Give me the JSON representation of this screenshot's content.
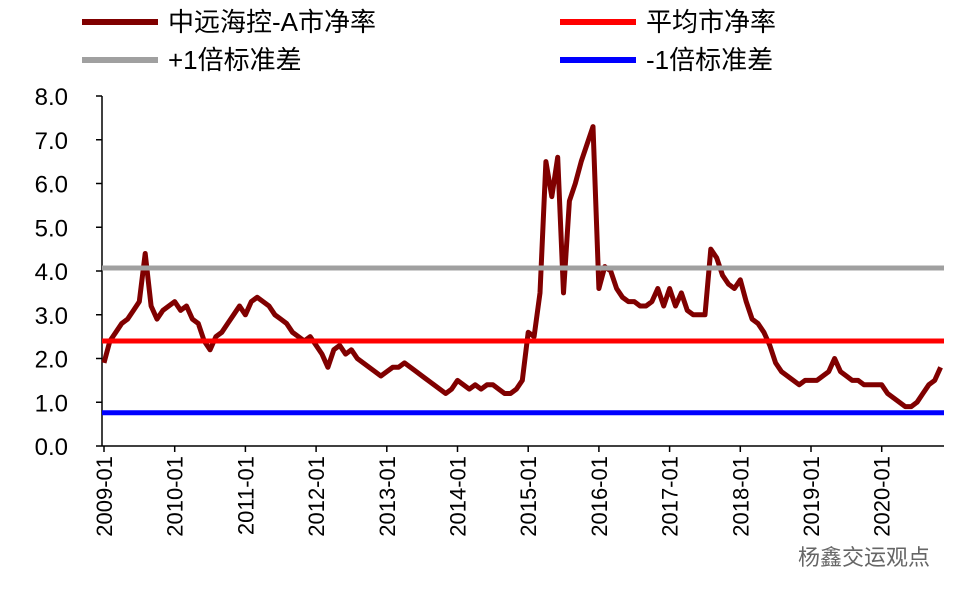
{
  "chart_data": {
    "type": "line",
    "x": [
      "2009-01",
      "2009-02",
      "2009-03",
      "2009-04",
      "2009-05",
      "2009-06",
      "2009-07",
      "2009-08",
      "2009-09",
      "2009-10",
      "2009-11",
      "2009-12",
      "2010-01",
      "2010-02",
      "2010-03",
      "2010-04",
      "2010-05",
      "2010-06",
      "2010-07",
      "2010-08",
      "2010-09",
      "2010-10",
      "2010-11",
      "2010-12",
      "2011-01",
      "2011-02",
      "2011-03",
      "2011-04",
      "2011-05",
      "2011-06",
      "2011-07",
      "2011-08",
      "2011-09",
      "2011-10",
      "2011-11",
      "2011-12",
      "2012-01",
      "2012-02",
      "2012-03",
      "2012-04",
      "2012-05",
      "2012-06",
      "2012-07",
      "2012-08",
      "2012-09",
      "2012-10",
      "2012-11",
      "2012-12",
      "2013-01",
      "2013-02",
      "2013-03",
      "2013-04",
      "2013-05",
      "2013-06",
      "2013-07",
      "2013-08",
      "2013-09",
      "2013-10",
      "2013-11",
      "2013-12",
      "2014-01",
      "2014-02",
      "2014-03",
      "2014-04",
      "2014-05",
      "2014-06",
      "2014-07",
      "2014-08",
      "2014-09",
      "2014-10",
      "2014-11",
      "2014-12",
      "2015-01",
      "2015-02",
      "2015-03",
      "2015-04",
      "2015-05",
      "2015-06",
      "2015-07",
      "2015-08",
      "2015-09",
      "2015-10",
      "2015-11",
      "2015-12",
      "2016-01",
      "2016-02",
      "2016-03",
      "2016-04",
      "2016-05",
      "2016-06",
      "2016-07",
      "2016-08",
      "2016-09",
      "2016-10",
      "2016-11",
      "2016-12",
      "2017-01",
      "2017-02",
      "2017-03",
      "2017-04",
      "2017-05",
      "2017-06",
      "2017-07",
      "2017-08",
      "2017-09",
      "2017-10",
      "2017-11",
      "2017-12",
      "2018-01",
      "2018-02",
      "2018-03",
      "2018-04",
      "2018-05",
      "2018-06",
      "2018-07",
      "2018-08",
      "2018-09",
      "2018-10",
      "2018-11",
      "2018-12",
      "2019-01",
      "2019-02",
      "2019-03",
      "2019-04",
      "2019-05",
      "2019-06",
      "2019-07",
      "2019-08",
      "2019-09",
      "2019-10",
      "2019-11",
      "2019-12",
      "2020-01",
      "2020-02",
      "2020-03",
      "2020-04",
      "2020-05",
      "2020-06",
      "2020-07",
      "2020-08",
      "2020-09",
      "2020-10",
      "2020-11"
    ],
    "series": [
      {
        "name": "中远海控-A市净率",
        "color": "#800000",
        "values": [
          1.9,
          2.4,
          2.6,
          2.8,
          2.9,
          3.1,
          3.3,
          4.4,
          3.2,
          2.9,
          3.1,
          3.2,
          3.3,
          3.1,
          3.2,
          2.9,
          2.8,
          2.4,
          2.2,
          2.5,
          2.6,
          2.8,
          3.0,
          3.2,
          3.0,
          3.3,
          3.4,
          3.3,
          3.2,
          3.0,
          2.9,
          2.8,
          2.6,
          2.5,
          2.4,
          2.5,
          2.3,
          2.1,
          1.8,
          2.2,
          2.3,
          2.1,
          2.2,
          2.0,
          1.9,
          1.8,
          1.7,
          1.6,
          1.7,
          1.8,
          1.8,
          1.9,
          1.8,
          1.7,
          1.6,
          1.5,
          1.4,
          1.3,
          1.2,
          1.3,
          1.5,
          1.4,
          1.3,
          1.4,
          1.3,
          1.4,
          1.4,
          1.3,
          1.2,
          1.2,
          1.3,
          1.5,
          2.6,
          2.5,
          3.5,
          6.5,
          5.7,
          6.6,
          3.5,
          5.6,
          6.0,
          6.5,
          6.9,
          7.3,
          3.6,
          4.1,
          4.0,
          3.6,
          3.4,
          3.3,
          3.3,
          3.2,
          3.2,
          3.3,
          3.6,
          3.2,
          3.6,
          3.2,
          3.5,
          3.1,
          3.0,
          3.0,
          3.0,
          4.5,
          4.3,
          3.9,
          3.7,
          3.6,
          3.8,
          3.3,
          2.9,
          2.8,
          2.6,
          2.3,
          1.9,
          1.7,
          1.6,
          1.5,
          1.4,
          1.5,
          1.5,
          1.5,
          1.6,
          1.7,
          2.0,
          1.7,
          1.6,
          1.5,
          1.5,
          1.4,
          1.4,
          1.4,
          1.4,
          1.2,
          1.1,
          1.0,
          0.9,
          0.9,
          1.0,
          1.2,
          1.4,
          1.5,
          1.8
        ]
      },
      {
        "name": "平均市净率",
        "color": "#ff0000",
        "value": 2.4
      },
      {
        "name": "+1倍标准差",
        "color": "#a0a0a0",
        "value": 4.07
      },
      {
        "name": "-1倍标准差",
        "color": "#0000ff",
        "value": 0.76
      }
    ],
    "ylim": [
      0,
      8
    ],
    "yticks": [
      {
        "value": 0,
        "label": "0.0"
      },
      {
        "value": 1,
        "label": "1.0"
      },
      {
        "value": 2,
        "label": "2.0"
      },
      {
        "value": 3,
        "label": "3.0"
      },
      {
        "value": 4,
        "label": "4.0"
      },
      {
        "value": 5,
        "label": "5.0"
      },
      {
        "value": 6,
        "label": "6.0"
      },
      {
        "value": 7,
        "label": "7.0"
      },
      {
        "value": 8,
        "label": "8.0"
      }
    ],
    "watermark": "杨鑫交运观点"
  }
}
